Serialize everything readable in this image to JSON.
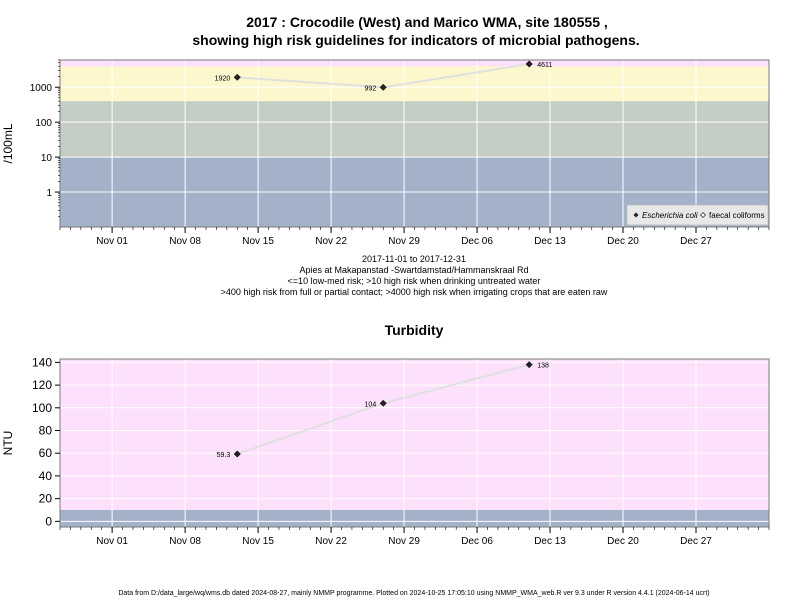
{
  "header": {
    "title_line1": "2017 : Crocodile (West) and Marico WMA, site 180555 ,",
    "title_line2": "showing high risk guidelines for indicators of microbial pathogens."
  },
  "footer": {
    "note": "Data from D:/data_large/wq/wms.db dated 2024-08-27, mainly NMMP programme. Plotted on 2024-10-25 17:05:10 using NMMP_WMA_web.R ver 9.3 under R version 4.4.1 (2024-06-14 ucrt)"
  },
  "colors": {
    "pink": "#fde0fb",
    "yellow": "#fcf7cd",
    "greygreen": "#c5cec4",
    "blue": "#a3b1c9",
    "line": "#e0e0e0",
    "gridline": "#ffffff"
  },
  "chart_data": [
    {
      "type": "line",
      "title": "",
      "ylabel": "/100mL",
      "yscale": "log",
      "ylim": [
        0.1,
        6000
      ],
      "yticks": [
        1,
        10,
        100,
        1000
      ],
      "ytick_labels": [
        "1",
        "10",
        "100",
        "1000"
      ],
      "xlim": [
        "2017-10-27",
        "2018-01-03"
      ],
      "xticks": [
        "2017-11-01",
        "2017-11-08",
        "2017-11-15",
        "2017-11-22",
        "2017-11-29",
        "2017-12-06",
        "2017-12-13",
        "2017-12-20",
        "2017-12-27"
      ],
      "xtick_labels": [
        "Nov 01",
        "Nov 08",
        "Nov 15",
        "Nov 22",
        "Nov 29",
        "Dec 06",
        "Dec 13",
        "Dec 20",
        "Dec 27"
      ],
      "bands": [
        {
          "from": 0.1,
          "to": 10,
          "color": "#a3b1c9"
        },
        {
          "from": 10,
          "to": 400,
          "color": "#c5cec4"
        },
        {
          "from": 400,
          "to": 4000,
          "color": "#fcf7cd"
        },
        {
          "from": 4000,
          "to": 6000,
          "color": "#fde0fb"
        }
      ],
      "series": [
        {
          "name": "Escherichia coli",
          "x": [
            "2017-11-13",
            "2017-11-27",
            "2017-12-11"
          ],
          "y": [
            1920,
            992,
            4611
          ],
          "labels": [
            "1920",
            "992",
            "4611"
          ]
        }
      ],
      "legend": {
        "placement": "bottom-right",
        "entries": [
          "Escherichia coli",
          "faecal coliforms"
        ]
      },
      "grid": true,
      "caption_lines": [
        "2017-11-01 to 2017-12-31",
        "Apies at Makapanstad -Swartdamstad/Hammanskraal Rd",
        "<=10 low-med risk; >10 high risk when drinking untreated water",
        ">400 high risk from full or partial contact; >4000 high risk when irrigating crops that are eaten raw"
      ]
    },
    {
      "type": "line",
      "title": "Turbidity",
      "ylabel": "NTU",
      "ylim": [
        -5,
        143
      ],
      "yticks": [
        0,
        20,
        40,
        60,
        80,
        100,
        120,
        140
      ],
      "ytick_labels": [
        "0",
        "20",
        "40",
        "60",
        "80",
        "100",
        "120",
        "140"
      ],
      "xlim": [
        "2017-10-27",
        "2018-01-03"
      ],
      "xticks": [
        "2017-11-01",
        "2017-11-08",
        "2017-11-15",
        "2017-11-22",
        "2017-11-29",
        "2017-12-06",
        "2017-12-13",
        "2017-12-20",
        "2017-12-27"
      ],
      "xtick_labels": [
        "Nov 01",
        "Nov 08",
        "Nov 15",
        "Nov 22",
        "Nov 29",
        "Dec 06",
        "Dec 13",
        "Dec 20",
        "Dec 27"
      ],
      "bands": [
        {
          "from": -5,
          "to": 10,
          "color": "#a3b1c9"
        },
        {
          "from": 10,
          "to": 143,
          "color": "#fde0fb"
        }
      ],
      "series": [
        {
          "x": [
            "2017-11-13",
            "2017-11-27",
            "2017-12-11"
          ],
          "y": [
            59.3,
            104,
            138
          ],
          "labels": [
            "59.3",
            "104",
            "138"
          ]
        }
      ],
      "grid": true
    }
  ]
}
